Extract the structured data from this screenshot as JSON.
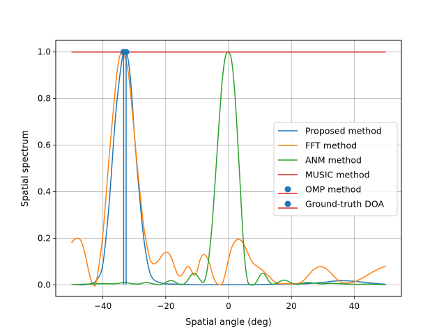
{
  "chart_data": {
    "type": "line",
    "title": "",
    "xlabel": "Spatial angle (deg)",
    "ylabel": "Spatial spectrum",
    "xlim": [
      -55,
      55
    ],
    "ylim": [
      -0.05,
      1.05
    ],
    "xticks": [
      -40,
      -20,
      0,
      20,
      40
    ],
    "yticks": [
      0.0,
      0.2,
      0.4,
      0.6,
      0.8,
      1.0
    ],
    "xtick_labels": [
      "−40",
      "−20",
      "0",
      "20",
      "40"
    ],
    "ytick_labels": [
      "0.0",
      "0.2",
      "0.4",
      "0.6",
      "0.8",
      "1.0"
    ],
    "grid": true,
    "legend_position": "center-right",
    "series": [
      {
        "name": "Proposed method",
        "color": "#1f77b4",
        "kind": "line",
        "x": [
          -50,
          -48,
          -46,
          -44,
          -42,
          -40,
          -38,
          -36,
          -34,
          -33,
          -32,
          -31,
          -30,
          -29,
          -28,
          -27,
          -26,
          -25,
          -24,
          -23,
          -22,
          -21,
          -20,
          -15,
          -10,
          -5,
          0,
          5,
          10,
          15,
          20,
          25,
          30,
          33,
          36,
          40,
          45,
          50
        ],
        "y": [
          0.0,
          0.0,
          0.0,
          0.005,
          0.02,
          0.09,
          0.35,
          0.72,
          0.96,
          1.0,
          0.97,
          0.85,
          0.65,
          0.48,
          0.33,
          0.2,
          0.11,
          0.05,
          0.025,
          0.015,
          0.01,
          0.006,
          0.004,
          0.002,
          0.0,
          0.0,
          0.0,
          0.0,
          0.001,
          0.003,
          0.004,
          0.005,
          0.01,
          0.015,
          0.018,
          0.015,
          0.008,
          0.002
        ]
      },
      {
        "name": "FFT method",
        "color": "#ff7f0e",
        "kind": "line",
        "x": [
          -50,
          -49,
          -48,
          -47,
          -46,
          -45,
          -44,
          -43,
          -42,
          -40,
          -38,
          -36,
          -35,
          -34,
          -33,
          -32,
          -31,
          -30,
          -29,
          -28,
          -27,
          -26,
          -25,
          -24,
          -23,
          -22,
          -21,
          -20,
          -19,
          -18,
          -17,
          -16,
          -15,
          -14,
          -13,
          -12,
          -11,
          -10,
          -9,
          -8,
          -7,
          -6,
          -5,
          -4,
          -3,
          -2,
          -1,
          0,
          1,
          2,
          3,
          4,
          5,
          6,
          7,
          8,
          9,
          10,
          11,
          12,
          13,
          14,
          15,
          16,
          17,
          18,
          19,
          20,
          21,
          22,
          23,
          24,
          25,
          26,
          27,
          28,
          29,
          30,
          31,
          32,
          33,
          34,
          35,
          36,
          37,
          38,
          39,
          40,
          41,
          42,
          43,
          44,
          45,
          46,
          47,
          48,
          49,
          50
        ],
        "y": [
          0.18,
          0.195,
          0.2,
          0.19,
          0.15,
          0.09,
          0.03,
          0.0,
          0.02,
          0.22,
          0.55,
          0.85,
          0.96,
          1.0,
          0.98,
          0.92,
          0.8,
          0.65,
          0.5,
          0.37,
          0.25,
          0.17,
          0.11,
          0.09,
          0.095,
          0.11,
          0.13,
          0.14,
          0.135,
          0.11,
          0.07,
          0.04,
          0.04,
          0.06,
          0.08,
          0.065,
          0.04,
          0.06,
          0.11,
          0.13,
          0.12,
          0.09,
          0.04,
          0.01,
          0.0,
          0.005,
          0.05,
          0.11,
          0.16,
          0.185,
          0.195,
          0.19,
          0.17,
          0.14,
          0.11,
          0.09,
          0.08,
          0.07,
          0.06,
          0.045,
          0.035,
          0.02,
          0.01,
          0.005,
          0.005,
          0.005,
          0.005,
          0.005,
          0.005,
          0.006,
          0.01,
          0.02,
          0.035,
          0.05,
          0.065,
          0.073,
          0.078,
          0.076,
          0.07,
          0.058,
          0.045,
          0.03,
          0.018,
          0.01,
          0.008,
          0.008,
          0.009,
          0.012,
          0.018,
          0.025,
          0.032,
          0.04,
          0.048,
          0.056,
          0.063,
          0.07,
          0.075,
          0.08
        ]
      },
      {
        "name": "ANM method",
        "color": "#2ca02c",
        "kind": "line",
        "x": [
          -50,
          -45,
          -40,
          -37,
          -35,
          -33,
          -31,
          -29,
          -28,
          -27,
          -26,
          -25,
          -24,
          -23,
          -22,
          -21,
          -20,
          -19,
          -18,
          -17,
          -16,
          -15,
          -14,
          -13,
          -12,
          -11,
          -10,
          -9,
          -8,
          -7,
          -6,
          -5,
          -4,
          -3,
          -2,
          -1,
          0,
          1,
          2,
          3,
          4,
          5,
          6,
          7,
          8,
          9,
          10,
          11,
          12,
          13,
          14,
          15,
          16,
          17,
          18,
          19,
          20,
          21,
          22,
          23,
          24,
          25,
          26,
          28,
          30,
          32,
          35,
          40,
          45,
          50
        ],
        "y": [
          0.0,
          0.003,
          0.005,
          0.004,
          0.006,
          0.01,
          0.005,
          0.003,
          0.005,
          0.008,
          0.01,
          0.007,
          0.004,
          0.002,
          0.0,
          0.004,
          0.01,
          0.016,
          0.018,
          0.012,
          0.004,
          0.0,
          0.005,
          0.02,
          0.04,
          0.05,
          0.04,
          0.02,
          0.01,
          0.05,
          0.15,
          0.3,
          0.5,
          0.7,
          0.88,
          0.98,
          1.0,
          0.96,
          0.82,
          0.6,
          0.35,
          0.13,
          0.02,
          0.0,
          0.0,
          0.015,
          0.04,
          0.05,
          0.035,
          0.012,
          0.002,
          0.005,
          0.012,
          0.018,
          0.02,
          0.015,
          0.008,
          0.003,
          0.002,
          0.004,
          0.008,
          0.01,
          0.009,
          0.006,
          0.004,
          0.006,
          0.005,
          0.002,
          0.003,
          0.0
        ]
      },
      {
        "name": "MUSIC method",
        "color": "#d62728",
        "kind": "line",
        "x": [
          -50,
          50
        ],
        "y": [
          1.0,
          1.0
        ]
      },
      {
        "name": "OMP method",
        "color": "#1f77b4",
        "kind": "stem",
        "x": [
          -33.4
        ],
        "y": [
          1.0
        ],
        "baseline_color": "#d62728"
      },
      {
        "name": "Ground-truth DOA",
        "color": "#1f77b4",
        "kind": "stem",
        "x": [
          -32.6
        ],
        "y": [
          1.0
        ],
        "baseline_color": "#d62728"
      }
    ]
  }
}
